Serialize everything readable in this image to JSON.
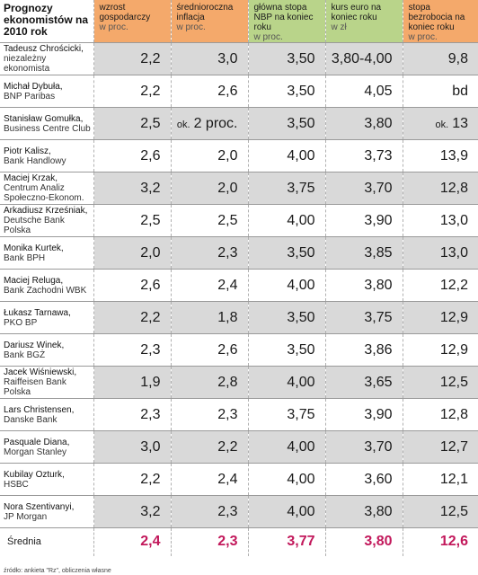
{
  "header": {
    "title": "Prognozy ekonomistów na 2010 rok",
    "columns": [
      {
        "label": "wzrost gospodarczy",
        "unit": "w proc."
      },
      {
        "label": "średnioroczna inflacja",
        "unit": "w proc."
      },
      {
        "label": "główna stopa NBP na koniec roku",
        "unit": "w proc."
      },
      {
        "label": "kurs euro na koniec roku",
        "unit": "w zł"
      },
      {
        "label": "stopa bezrobocia na koniec roku",
        "unit": "w proc."
      }
    ]
  },
  "rows": [
    {
      "person": "Tadeusz Chrościcki,",
      "inst": "niezależny ekonomista",
      "values": [
        "2,2",
        "3,0",
        "3,50",
        "3,80-4,00",
        "9,8"
      ]
    },
    {
      "person": "Michał Dybuła,",
      "inst": "BNP Paribas",
      "values": [
        "2,2",
        "2,6",
        "3,50",
        "4,05",
        "bd"
      ]
    },
    {
      "person": "Stanisław Gomułka,",
      "inst": "Business Centre Club",
      "values": [
        "2,5",
        "2 proc.",
        "3,50",
        "3,80",
        "13"
      ],
      "prefix": "ok."
    },
    {
      "person": "Piotr Kalisz,",
      "inst": "Bank Handlowy",
      "values": [
        "2,6",
        "2,0",
        "4,00",
        "3,73",
        "13,9"
      ]
    },
    {
      "person": "Maciej Krzak,",
      "inst": "Centrum Analiz Społeczno-Ekonom.",
      "values": [
        "3,2",
        "2,0",
        "3,75",
        "3,70",
        "12,8"
      ]
    },
    {
      "person": "Arkadiusz Krześniak,",
      "inst": "Deutsche Bank Polska",
      "values": [
        "2,5",
        "2,5",
        "4,00",
        "3,90",
        "13,0"
      ]
    },
    {
      "person": "Monika Kurtek,",
      "inst": "Bank BPH",
      "values": [
        "2,0",
        "2,3",
        "3,50",
        "3,85",
        "13,0"
      ]
    },
    {
      "person": "Maciej Reluga,",
      "inst": "Bank Zachodni WBK",
      "values": [
        "2,6",
        "2,4",
        "4,00",
        "3,80",
        "12,2"
      ]
    },
    {
      "person": "Łukasz Tarnawa,",
      "inst": "PKO BP",
      "values": [
        "2,2",
        "1,8",
        "3,50",
        "3,75",
        "12,9"
      ]
    },
    {
      "person": "Dariusz Winek,",
      "inst": "Bank BGŻ",
      "values": [
        "2,3",
        "2,6",
        "3,50",
        "3,86",
        "12,9"
      ]
    },
    {
      "person": "Jacek Wiśniewski,",
      "inst": "Raiffeisen Bank Polska",
      "values": [
        "1,9",
        "2,8",
        "4,00",
        "3,65",
        "12,5"
      ]
    },
    {
      "person": "Lars Christensen,",
      "inst": "Danske Bank",
      "values": [
        "2,3",
        "2,3",
        "3,75",
        "3,90",
        "12,8"
      ]
    },
    {
      "person": "Pasquale Diana,",
      "inst": "Morgan Stanley",
      "values": [
        "3,0",
        "2,2",
        "4,00",
        "3,70",
        "12,7"
      ]
    },
    {
      "person": "Kubilay Ozturk,",
      "inst": "HSBC",
      "values": [
        "2,2",
        "2,4",
        "4,00",
        "3,60",
        "12,1"
      ]
    },
    {
      "person": "Nora Szentivanyi,",
      "inst": "JP Morgan",
      "values": [
        "3,2",
        "2,3",
        "4,00",
        "3,80",
        "12,5"
      ]
    }
  ],
  "average": {
    "label": "Średnia",
    "values": [
      "2,4",
      "2,3",
      "3,77",
      "3,80",
      "12,6"
    ]
  },
  "source": "źródło: ankieta \"Rz\", obliczenia własne"
}
